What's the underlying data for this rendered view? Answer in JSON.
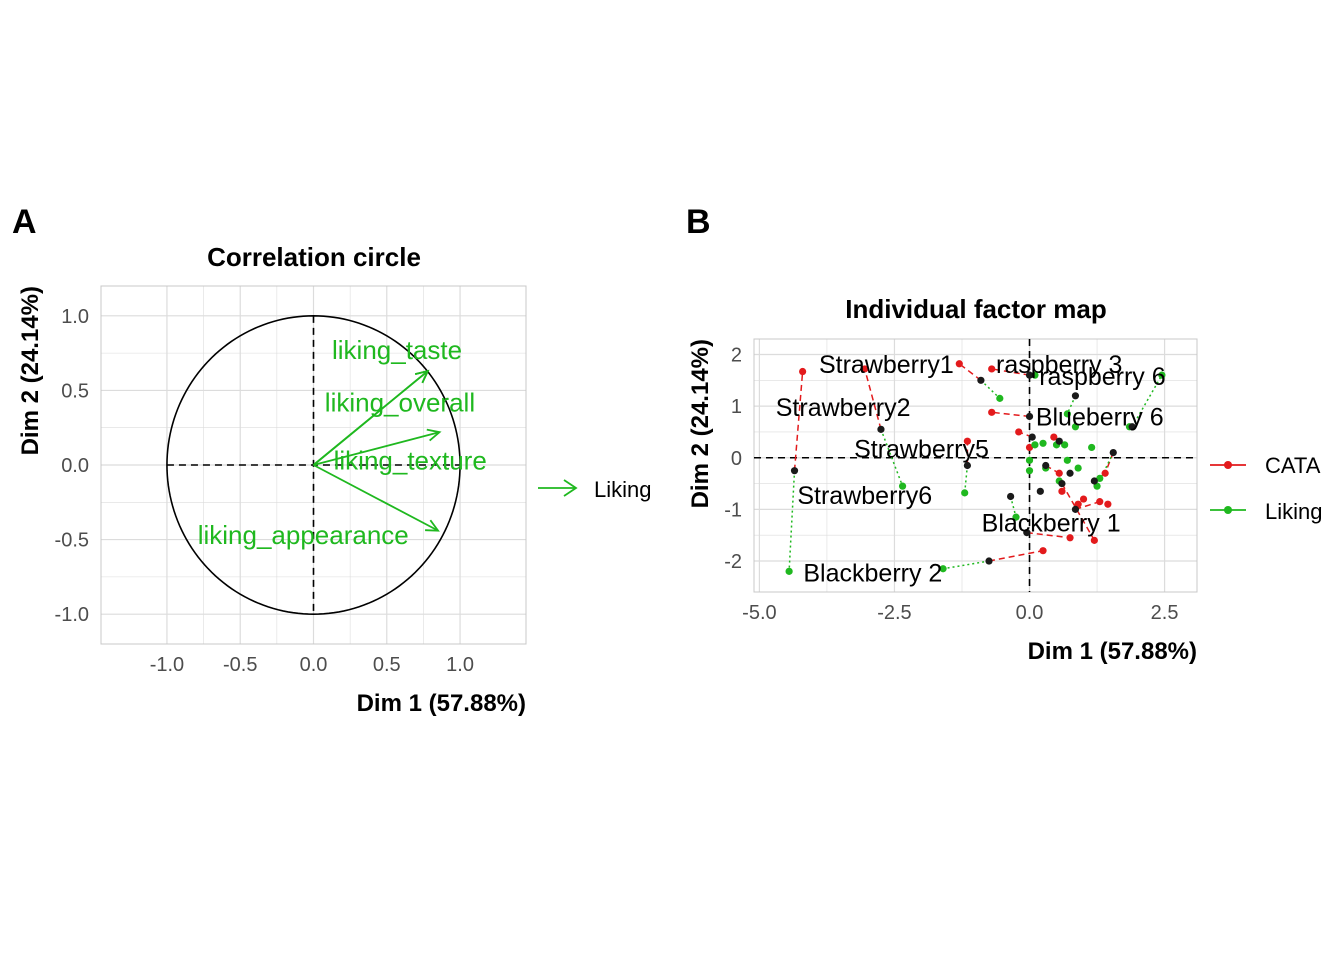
{
  "panels": {
    "a_tag": "A",
    "b_tag": "B"
  },
  "colors": {
    "liking": "#1FB81F",
    "cata": "#E31A1C",
    "center": "#1a1a1a",
    "grid": "#DCDCDC",
    "panel_border": "#C8C8C8",
    "tick_text": "#4D4D4D"
  },
  "chart_data": [
    {
      "type": "scatter",
      "subtype": "correlation-circle",
      "title": "Correlation circle",
      "xlabel": "Dim 1 (57.88%)",
      "ylabel": "Dim 2 (24.14%)",
      "xlim": [
        -1.45,
        1.45
      ],
      "ylim": [
        -1.2,
        1.2
      ],
      "xticks": [
        -1.0,
        -0.5,
        0.0,
        0.5,
        1.0
      ],
      "yticks": [
        -1.0,
        -0.5,
        0.0,
        0.5,
        1.0
      ],
      "xtick_labels": [
        "-1.0",
        "-0.5",
        "0.0",
        "0.5",
        "1.0"
      ],
      "ytick_labels": [
        "-1.0",
        "-0.5",
        "0.0",
        "0.5",
        "1.0"
      ],
      "grid": true,
      "legend": {
        "position": "right",
        "entries": [
          {
            "label": "Liking",
            "color": "#1FB81F",
            "glyph": "arrow"
          }
        ]
      },
      "vectors": [
        {
          "label": "liking_taste",
          "x": 0.78,
          "y": 0.63,
          "label_x": 0.57,
          "label_y": 0.77
        },
        {
          "label": "liking_overall",
          "x": 0.78,
          "y": 0.63,
          "label_x": 0.59,
          "label_y": 0.42
        },
        {
          "label": "liking_texture",
          "x": 0.86,
          "y": 0.22,
          "label_x": 0.66,
          "label_y": 0.03
        },
        {
          "label": "liking_appearance",
          "x": 0.85,
          "y": -0.44,
          "label_x": -0.07,
          "label_y": -0.47
        }
      ]
    },
    {
      "type": "scatter",
      "subtype": "individual-factor-map",
      "title": "Individual factor map",
      "xlabel": "Dim 1 (57.88%)",
      "ylabel": "Dim 2 (24.14%)",
      "xlim": [
        -5.1,
        3.1
      ],
      "ylim": [
        -2.6,
        2.3
      ],
      "xticks": [
        -5.0,
        -2.5,
        0.0,
        2.5
      ],
      "yticks": [
        -2,
        -1,
        0,
        1,
        2
      ],
      "xtick_labels": [
        "-5.0",
        "-2.5",
        "0.0",
        "2.5"
      ],
      "ytick_labels": [
        "-2",
        "-1",
        "0",
        "1",
        "2"
      ],
      "grid": true,
      "legend": {
        "position": "right",
        "entries": [
          {
            "label": "CATA",
            "color": "#E31A1C"
          },
          {
            "label": "Liking",
            "color": "#1FB81F"
          }
        ]
      },
      "series": [
        {
          "name": "CATA",
          "points": [
            [
              -4.2,
              1.67
            ],
            [
              -3.05,
              1.72
            ],
            [
              -1.3,
              1.82
            ],
            [
              -0.7,
              1.72
            ],
            [
              -0.7,
              0.88
            ],
            [
              -1.15,
              0.32
            ],
            [
              -0.2,
              0.5
            ],
            [
              0.0,
              0.2
            ],
            [
              0.45,
              0.4
            ],
            [
              0.55,
              -0.3
            ],
            [
              1.2,
              -1.6
            ],
            [
              0.75,
              -1.55
            ],
            [
              0.25,
              -1.8
            ],
            [
              1.0,
              -0.8
            ],
            [
              1.3,
              -0.85
            ],
            [
              1.45,
              -0.9
            ],
            [
              1.4,
              -0.3
            ],
            [
              0.9,
              -0.9
            ],
            [
              0.6,
              -0.65
            ]
          ]
        },
        {
          "name": "Liking",
          "points": [
            [
              -4.45,
              -2.2
            ],
            [
              -2.35,
              -0.55
            ],
            [
              -1.2,
              -0.68
            ],
            [
              -0.55,
              1.15
            ],
            [
              0.1,
              1.6
            ],
            [
              0.7,
              0.85
            ],
            [
              1.85,
              0.6
            ],
            [
              2.45,
              1.6
            ],
            [
              0.1,
              0.25
            ],
            [
              0.25,
              0.28
            ],
            [
              0.5,
              0.25
            ],
            [
              0.65,
              0.25
            ],
            [
              1.15,
              0.2
            ],
            [
              0.0,
              -0.05
            ],
            [
              0.3,
              -0.2
            ],
            [
              0.7,
              -0.05
            ],
            [
              1.3,
              -0.4
            ],
            [
              -0.25,
              -1.15
            ],
            [
              -1.6,
              -2.15
            ],
            [
              0.55,
              -0.45
            ],
            [
              0.0,
              -0.25
            ],
            [
              0.85,
              0.6
            ],
            [
              1.25,
              -0.55
            ],
            [
              0.9,
              -0.2
            ]
          ]
        }
      ],
      "centers": [
        [
          -4.35,
          -0.25
        ],
        [
          -2.75,
          0.55
        ],
        [
          -1.15,
          -0.15
        ],
        [
          -0.9,
          1.5
        ],
        [
          0.0,
          1.6
        ],
        [
          0.85,
          1.2
        ],
        [
          1.9,
          0.6
        ],
        [
          1.55,
          0.1
        ],
        [
          0.0,
          0.8
        ],
        [
          0.05,
          0.4
        ],
        [
          0.55,
          0.32
        ],
        [
          0.3,
          -0.15
        ],
        [
          0.6,
          -0.5
        ],
        [
          -0.35,
          -0.75
        ],
        [
          0.2,
          -0.65
        ],
        [
          0.85,
          -1.0
        ],
        [
          -0.75,
          -2.0
        ],
        [
          -0.05,
          -1.45
        ],
        [
          1.2,
          -0.45
        ],
        [
          0.75,
          -0.3
        ]
      ],
      "segments": [
        {
          "series": "CATA",
          "from": [
            -4.35,
            -0.25
          ],
          "to": [
            -4.2,
            1.67
          ]
        },
        {
          "series": "Liking",
          "from": [
            -4.35,
            -0.25
          ],
          "to": [
            -4.45,
            -2.2
          ]
        },
        {
          "series": "CATA",
          "from": [
            -2.75,
            0.55
          ],
          "to": [
            -3.05,
            1.72
          ]
        },
        {
          "series": "Liking",
          "from": [
            -2.75,
            0.55
          ],
          "to": [
            -2.35,
            -0.55
          ]
        },
        {
          "series": "CATA",
          "from": [
            -1.15,
            -0.15
          ],
          "to": [
            -1.15,
            0.32
          ]
        },
        {
          "series": "Liking",
          "from": [
            -1.15,
            -0.15
          ],
          "to": [
            -1.2,
            -0.68
          ]
        },
        {
          "series": "CATA",
          "from": [
            -0.9,
            1.5
          ],
          "to": [
            -1.3,
            1.82
          ]
        },
        {
          "series": "Liking",
          "from": [
            -0.9,
            1.5
          ],
          "to": [
            -0.55,
            1.15
          ]
        },
        {
          "series": "CATA",
          "from": [
            0.0,
            1.6
          ],
          "to": [
            -0.7,
            1.72
          ]
        },
        {
          "series": "Liking",
          "from": [
            0.0,
            1.6
          ],
          "to": [
            0.1,
            1.6
          ]
        },
        {
          "series": "CATA",
          "from": [
            0.0,
            0.8
          ],
          "to": [
            -0.7,
            0.88
          ]
        },
        {
          "series": "Liking",
          "from": [
            0.85,
            1.2
          ],
          "to": [
            0.7,
            0.85
          ]
        },
        {
          "series": "Liking",
          "from": [
            1.9,
            0.6
          ],
          "to": [
            2.45,
            1.6
          ]
        },
        {
          "series": "Liking",
          "from": [
            1.9,
            0.6
          ],
          "to": [
            1.85,
            0.6
          ]
        },
        {
          "series": "CATA",
          "from": [
            0.05,
            0.4
          ],
          "to": [
            -0.2,
            0.5
          ]
        },
        {
          "series": "Liking",
          "from": [
            0.05,
            0.4
          ],
          "to": [
            0.1,
            0.25
          ]
        },
        {
          "series": "CATA",
          "from": [
            -0.75,
            -2.0
          ],
          "to": [
            0.25,
            -1.8
          ]
        },
        {
          "series": "Liking",
          "from": [
            -0.75,
            -2.0
          ],
          "to": [
            -1.6,
            -2.15
          ]
        },
        {
          "series": "CATA",
          "from": [
            -0.05,
            -1.45
          ],
          "to": [
            0.75,
            -1.55
          ]
        },
        {
          "series": "Liking",
          "from": [
            -0.35,
            -0.75
          ],
          "to": [
            -0.25,
            -1.15
          ]
        },
        {
          "series": "CATA",
          "from": [
            0.85,
            -1.0
          ],
          "to": [
            1.3,
            -0.85
          ]
        },
        {
          "series": "CATA",
          "from": [
            0.6,
            -0.5
          ],
          "to": [
            1.2,
            -1.6
          ]
        },
        {
          "series": "CATA",
          "from": [
            0.3,
            -0.15
          ],
          "to": [
            0.55,
            -0.3
          ]
        },
        {
          "series": "Liking",
          "from": [
            0.3,
            -0.15
          ],
          "to": [
            0.3,
            -0.2
          ]
        },
        {
          "series": "CATA",
          "from": [
            1.55,
            0.1
          ],
          "to": [
            1.4,
            -0.3
          ]
        },
        {
          "series": "Liking",
          "from": [
            1.55,
            0.1
          ],
          "to": [
            1.25,
            -0.55
          ]
        }
      ],
      "labels": [
        {
          "text": "Strawberry1",
          "x": -2.65,
          "y": 1.82
        },
        {
          "text": "raspberry 3",
          "x": 0.55,
          "y": 1.82
        },
        {
          "text": "raspberry 6",
          "x": 1.35,
          "y": 1.58
        },
        {
          "text": "Strawberry2",
          "x": -3.45,
          "y": 0.98
        },
        {
          "text": "Blueberry 6",
          "x": 1.3,
          "y": 0.8
        },
        {
          "text": "Strawberry5",
          "x": -2.0,
          "y": 0.18
        },
        {
          "text": "Strawberry6",
          "x": -3.05,
          "y": -0.72
        },
        {
          "text": "Blackberry 1",
          "x": 0.4,
          "y": -1.25
        },
        {
          "text": "Blackberry 2",
          "x": -2.9,
          "y": -2.22
        }
      ]
    }
  ]
}
